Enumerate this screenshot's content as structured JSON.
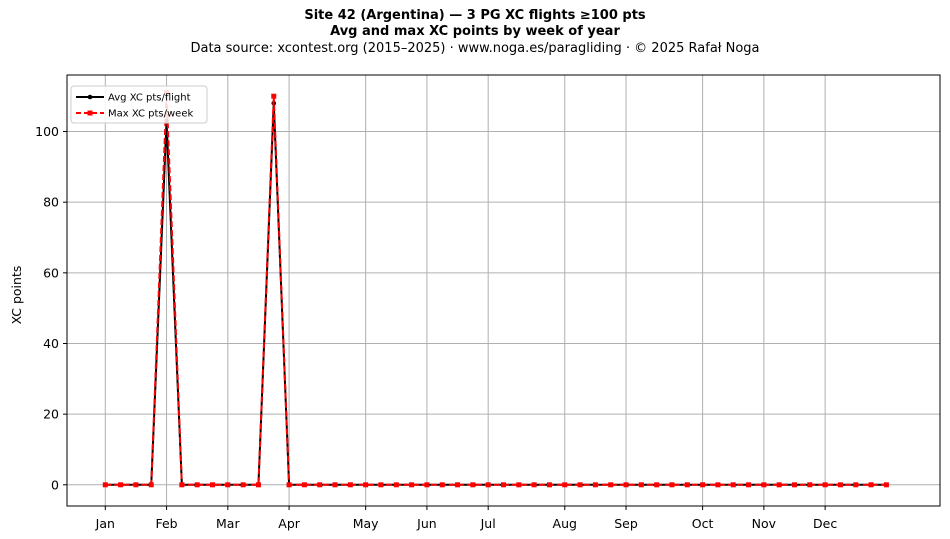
{
  "chart_data": {
    "type": "line",
    "title": "Site 42 (Argentina)  —  3 PG XC flights ≥100 pts",
    "subtitle": "Avg and max XC points by week of year",
    "source_line": "Data source: xcontest.org (2015–2025)  ·  www.noga.es/paragliding  ·  © 2025 Rafał Noga",
    "xlabel": "",
    "ylabel": "XC points",
    "x_range": [
      -2.5,
      54.5
    ],
    "ylim": [
      -6,
      116
    ],
    "y_ticks": [
      0,
      20,
      40,
      60,
      80,
      100
    ],
    "x_ticks": [
      {
        "label": "Jan",
        "week": 0
      },
      {
        "label": "Feb",
        "week": 4
      },
      {
        "label": "Mar",
        "week": 8
      },
      {
        "label": "Apr",
        "week": 12
      },
      {
        "label": "May",
        "week": 17
      },
      {
        "label": "Jun",
        "week": 21
      },
      {
        "label": "Jul",
        "week": 25
      },
      {
        "label": "Aug",
        "week": 30
      },
      {
        "label": "Sep",
        "week": 34
      },
      {
        "label": "Oct",
        "week": 39
      },
      {
        "label": "Nov",
        "week": 43
      },
      {
        "label": "Dec",
        "week": 47
      }
    ],
    "grid": true,
    "legend_position": "top-left",
    "x": [
      0,
      1,
      2,
      3,
      4,
      5,
      6,
      7,
      8,
      9,
      10,
      11,
      12,
      13,
      14,
      15,
      16,
      17,
      18,
      19,
      20,
      21,
      22,
      23,
      24,
      25,
      26,
      27,
      28,
      29,
      30,
      31,
      32,
      33,
      34,
      35,
      36,
      37,
      38,
      39,
      40,
      41,
      42,
      43,
      44,
      45,
      46,
      47,
      48,
      49,
      50,
      51
    ],
    "series": [
      {
        "name": "Avg XC pts/flight",
        "color": "#000000",
        "style": "solid",
        "marker": "circle",
        "values": [
          0,
          0,
          0,
          0,
          103,
          0,
          0,
          0,
          0,
          0,
          0,
          108,
          0,
          0,
          0,
          0,
          0,
          0,
          0,
          0,
          0,
          0,
          0,
          0,
          0,
          0,
          0,
          0,
          0,
          0,
          0,
          0,
          0,
          0,
          0,
          0,
          0,
          0,
          0,
          0,
          0,
          0,
          0,
          0,
          0,
          0,
          0,
          0,
          0,
          0,
          0,
          0
        ]
      },
      {
        "name": "Max XC pts/week",
        "color": "#ff0000",
        "style": "dashed",
        "marker": "square",
        "values": [
          0,
          0,
          0,
          0,
          111,
          0,
          0,
          0,
          0,
          0,
          0,
          110,
          0,
          0,
          0,
          0,
          0,
          0,
          0,
          0,
          0,
          0,
          0,
          0,
          0,
          0,
          0,
          0,
          0,
          0,
          0,
          0,
          0,
          0,
          0,
          0,
          0,
          0,
          0,
          0,
          0,
          0,
          0,
          0,
          0,
          0,
          0,
          0,
          0,
          0,
          0,
          0
        ]
      }
    ]
  }
}
